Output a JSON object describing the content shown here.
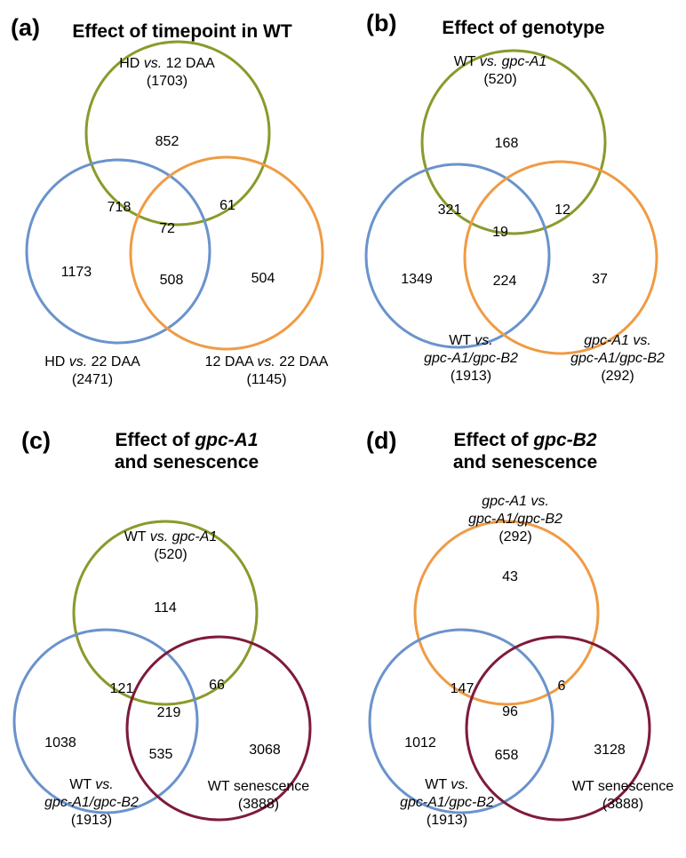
{
  "colors": {
    "green": "#8a9a2c",
    "blue": "#6a93cc",
    "orange": "#ef9b44",
    "maroon": "#7e1b3a"
  },
  "panels": [
    {
      "label": "(a)",
      "title_lines": [
        "Effect of timepoint in WT"
      ],
      "sets": [
        {
          "lines": [
            [
              {
                "t": "HD "
              },
              {
                "t": "vs.",
                "i": true
              },
              {
                "t": " 12 DAA"
              }
            ],
            [
              {
                "t": "(1703)"
              }
            ]
          ],
          "color": "green"
        },
        {
          "lines": [
            [
              {
                "t": "HD "
              },
              {
                "t": "vs.",
                "i": true
              },
              {
                "t": " 22 DAA"
              }
            ],
            [
              {
                "t": "(2471)"
              }
            ]
          ],
          "color": "blue"
        },
        {
          "lines": [
            [
              {
                "t": "12 DAA "
              },
              {
                "t": "vs.",
                "i": true
              },
              {
                "t": " 22 DAA"
              }
            ],
            [
              {
                "t": "(1145)"
              }
            ]
          ],
          "color": "orange"
        }
      ],
      "regions": {
        "top_only": "852",
        "left_only": "1173",
        "right_only": "504",
        "top_left": "718",
        "top_right": "61",
        "left_right": "508",
        "center": "72"
      }
    },
    {
      "label": "(b)",
      "title_lines": [
        "Effect of genotype"
      ],
      "sets": [
        {
          "lines": [
            [
              {
                "t": "WT "
              },
              {
                "t": "vs. gpc-A1",
                "i": true
              }
            ],
            [
              {
                "t": "(520)"
              }
            ]
          ],
          "color": "green"
        },
        {
          "lines": [
            [
              {
                "t": "WT "
              },
              {
                "t": "vs.",
                "i": true
              }
            ],
            [
              {
                "t": "gpc-A1/gpc-B2",
                "i": true
              }
            ],
            [
              {
                "t": "(1913)"
              }
            ]
          ],
          "color": "blue"
        },
        {
          "lines": [
            [
              {
                "t": "gpc-A1 vs.",
                "i": true
              }
            ],
            [
              {
                "t": "gpc-A1/gpc-B2",
                "i": true
              }
            ],
            [
              {
                "t": "(292)"
              }
            ]
          ],
          "color": "orange"
        }
      ],
      "regions": {
        "top_only": "168",
        "left_only": "1349",
        "right_only": "37",
        "top_left": "321",
        "top_right": "12",
        "left_right": "224",
        "center": "19"
      }
    },
    {
      "label": "(c)",
      "title_lines": [
        [
          {
            "t": "Effect of "
          },
          {
            "t": "gpc-A1",
            "i": true
          }
        ],
        [
          {
            "t": "and senescence"
          }
        ]
      ],
      "sets": [
        {
          "lines": [
            [
              {
                "t": "WT "
              },
              {
                "t": "vs. gpc-A1",
                "i": true
              }
            ],
            [
              {
                "t": "(520)"
              }
            ]
          ],
          "color": "green"
        },
        {
          "lines": [
            [
              {
                "t": "WT "
              },
              {
                "t": "vs.",
                "i": true
              }
            ],
            [
              {
                "t": "gpc-A1/gpc-B2",
                "i": true
              }
            ],
            [
              {
                "t": "(1913)"
              }
            ]
          ],
          "color": "blue"
        },
        {
          "lines": [
            [
              {
                "t": "WT senescence"
              }
            ],
            [
              {
                "t": "(3888)"
              }
            ]
          ],
          "color": "maroon"
        }
      ],
      "regions": {
        "top_only": "114",
        "left_only": "1038",
        "right_only": "3068",
        "top_left": "121",
        "top_right": "66",
        "left_right": "535",
        "center": "219"
      }
    },
    {
      "label": "(d)",
      "title_lines": [
        [
          {
            "t": "Effect of "
          },
          {
            "t": "gpc-B2",
            "i": true
          }
        ],
        [
          {
            "t": "and senescence"
          }
        ]
      ],
      "sets": [
        {
          "lines": [
            [
              {
                "t": "gpc-A1 vs.",
                "i": true
              }
            ],
            [
              {
                "t": "gpc-A1/gpc-B2",
                "i": true
              }
            ],
            [
              {
                "t": "(292)"
              }
            ]
          ],
          "color": "orange"
        },
        {
          "lines": [
            [
              {
                "t": "WT "
              },
              {
                "t": "vs.",
                "i": true
              }
            ],
            [
              {
                "t": "gpc-A1/gpc-B2",
                "i": true
              }
            ],
            [
              {
                "t": "(1913)"
              }
            ]
          ],
          "color": "blue"
        },
        {
          "lines": [
            [
              {
                "t": "WT senescence"
              }
            ],
            [
              {
                "t": "(3888)"
              }
            ]
          ],
          "color": "maroon"
        }
      ],
      "regions": {
        "top_only": "43",
        "left_only": "1012",
        "right_only": "3128",
        "top_left": "147",
        "top_right": "6",
        "left_right": "658",
        "center": "96"
      }
    }
  ]
}
